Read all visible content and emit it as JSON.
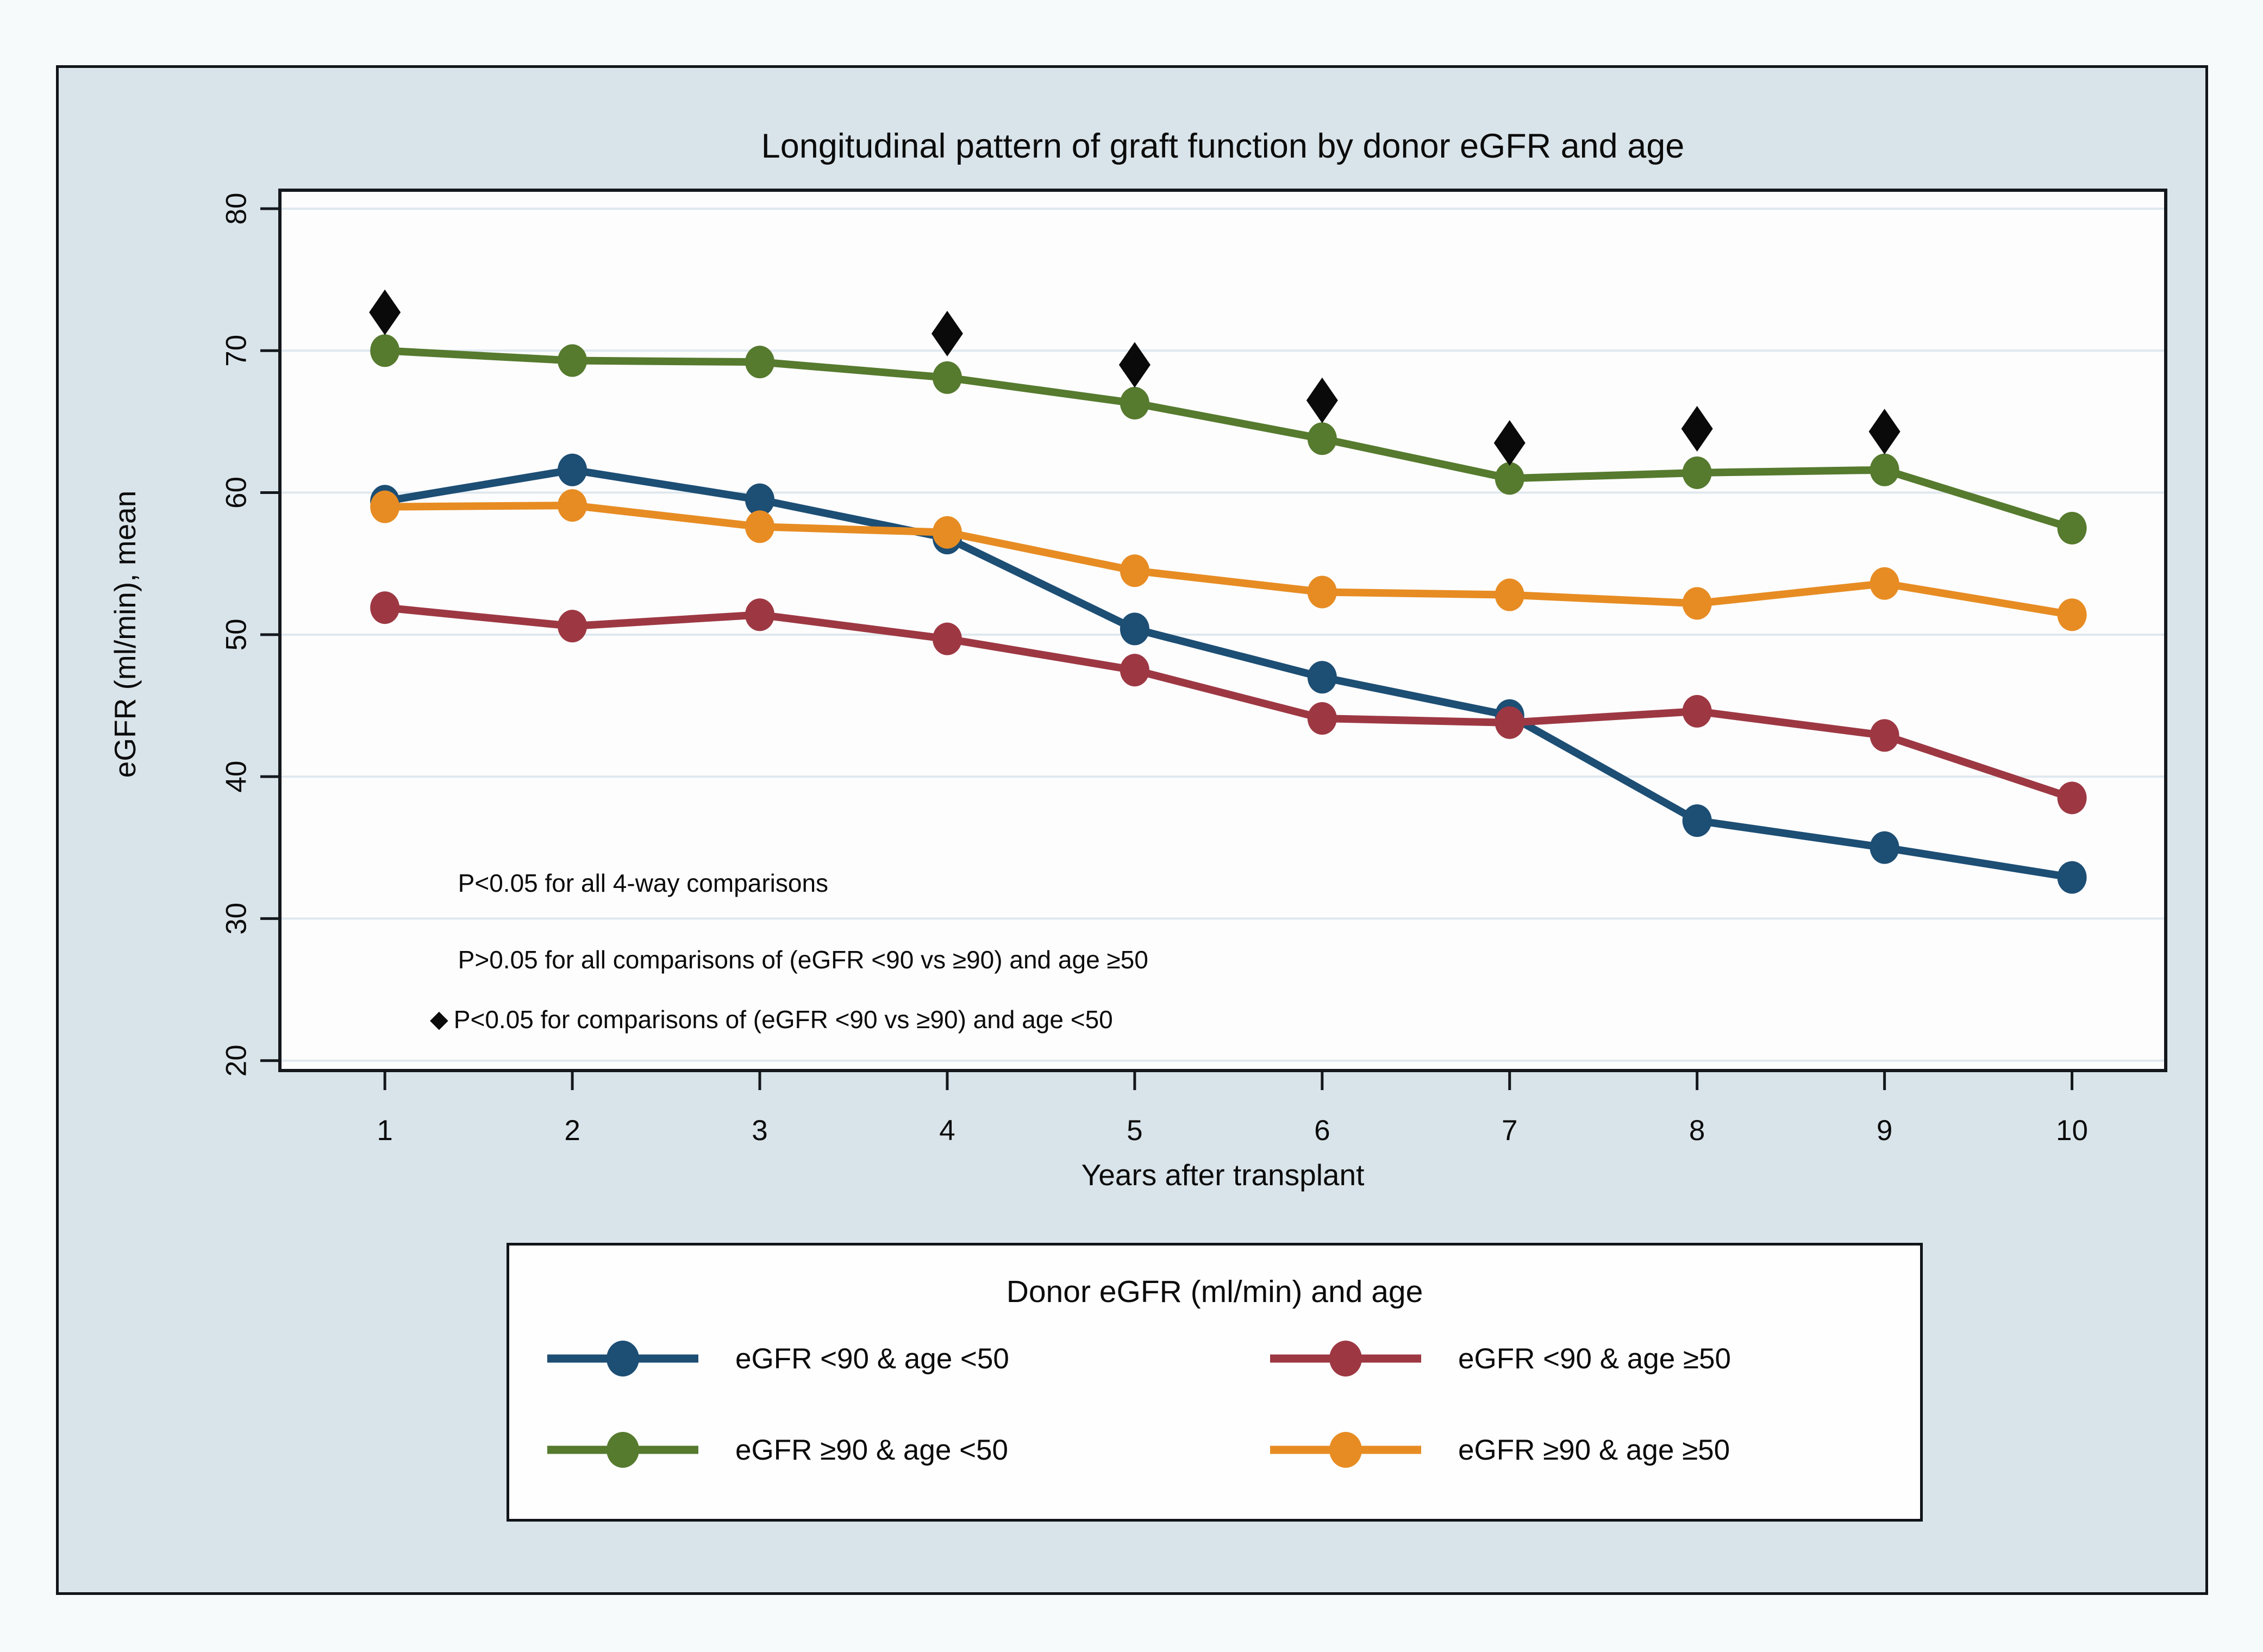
{
  "page": {
    "background": "#f6fafb"
  },
  "figure": {
    "background": "#d9e4ea",
    "border_color": "#11151a"
  },
  "title": "Longitudinal pattern of graft function by donor eGFR and age",
  "chart_data": {
    "type": "line",
    "x": [
      1,
      2,
      3,
      4,
      5,
      6,
      7,
      8,
      9,
      10
    ],
    "series": [
      {
        "name": "eGFR <90 & age <50",
        "color": "#1d4e74",
        "values": [
          59.4,
          61.6,
          59.5,
          56.8,
          50.4,
          47.0,
          44.3,
          36.9,
          35.0,
          32.9
        ]
      },
      {
        "name": "eGFR <90 & age ≥50",
        "color": "#9d3843",
        "values": [
          51.9,
          50.6,
          51.4,
          49.7,
          47.5,
          44.1,
          43.8,
          44.6,
          42.9,
          38.5
        ]
      },
      {
        "name": "eGFR ≥90 & age <50",
        "color": "#567a2e",
        "values": [
          70.0,
          69.3,
          69.2,
          68.1,
          66.3,
          63.8,
          61.0,
          61.4,
          61.6,
          57.5
        ]
      },
      {
        "name": "eGFR ≥90 & age ≥50",
        "color": "#e78c23",
        "values": [
          59.0,
          59.1,
          57.6,
          57.2,
          54.5,
          53.0,
          52.8,
          52.2,
          53.6,
          51.4
        ]
      }
    ],
    "significance_markers": {
      "symbol": "◆",
      "color": "#0a0a0a",
      "meaning": "P<0.05 for comparisons of (eGFR <90 vs ≥90) and age <50",
      "points": [
        {
          "x": 1,
          "y": 72.7
        },
        {
          "x": 4,
          "y": 71.2
        },
        {
          "x": 5,
          "y": 69.0
        },
        {
          "x": 6,
          "y": 66.5
        },
        {
          "x": 7,
          "y": 63.5
        },
        {
          "x": 8,
          "y": 64.5
        },
        {
          "x": 9,
          "y": 64.3
        }
      ]
    },
    "title": "Longitudinal pattern of graft function by donor eGFR and age",
    "xlabel": "Years after transplant",
    "ylabel": "eGFR (ml/min), mean",
    "xticks": [
      "1",
      "2",
      "3",
      "4",
      "5",
      "6",
      "7",
      "8",
      "9",
      "10"
    ],
    "yticks": [
      "20",
      "30",
      "40",
      "50",
      "60",
      "70",
      "80"
    ],
    "ytick_values": [
      20,
      30,
      40,
      50,
      60,
      70,
      80
    ],
    "xlim": [
      0.44,
      10.5
    ],
    "ylim": [
      19.3,
      81.3
    ],
    "grid": "horizontal",
    "ytick_label_angle": -90,
    "plot_background": "#fdfdfe",
    "gridline_color": "#dfe8ee",
    "axis_color": "#14181c",
    "legend_position": "bottom",
    "annotations": [
      {
        "x": 1.39,
        "y": 32.5,
        "marker": "",
        "text": "P<0.05 for all 4-way comparisons"
      },
      {
        "x": 1.39,
        "y": 27.1,
        "marker": "",
        "text": "P>0.05 for all comparisons of (eGFR <90 vs ≥90) and age ≥50"
      },
      {
        "x": 1.24,
        "y": 22.9,
        "marker": "◆",
        "text": "P<0.05 for comparisons of (eGFR <90 vs ≥90) and age <50"
      }
    ],
    "legend": {
      "title": "Donor eGFR (ml/min) and age",
      "entries": [
        "eGFR <90 & age <50",
        "eGFR <90 & age ≥50",
        "eGFR ≥90 & age <50",
        "eGFR ≥90 & age ≥50"
      ]
    }
  }
}
